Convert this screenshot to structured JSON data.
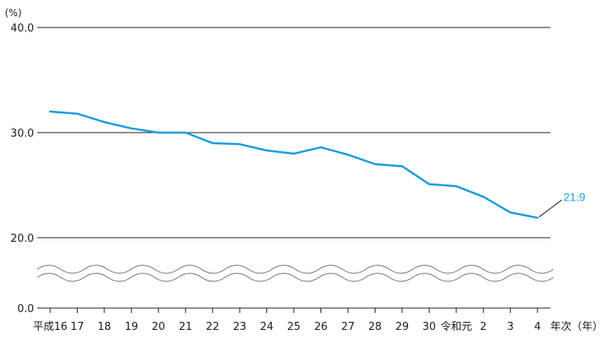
{
  "chart_data": {
    "type": "line",
    "ylabel": "(%)",
    "xlabel": "年次（年）",
    "y_ticks": [
      "0.0",
      "20.0",
      "30.0",
      "40.0"
    ],
    "y_break": [
      0,
      20
    ],
    "ylim": [
      20,
      40
    ],
    "grid": true,
    "categories": [
      "平成16",
      "17",
      "18",
      "19",
      "20",
      "21",
      "22",
      "23",
      "24",
      "25",
      "26",
      "27",
      "28",
      "29",
      "30",
      "令和元",
      "2",
      "3",
      "4"
    ],
    "series": [
      {
        "values": [
          32.0,
          31.8,
          31.0,
          30.4,
          30.0,
          30.0,
          29.0,
          28.9,
          28.3,
          28.0,
          28.6,
          27.9,
          27.0,
          26.8,
          25.1,
          24.9,
          23.9,
          22.4,
          21.9
        ],
        "color": "#1a9be0"
      }
    ],
    "annotations": [
      {
        "text": "21.9",
        "category": "4",
        "value": 21.9
      }
    ]
  }
}
